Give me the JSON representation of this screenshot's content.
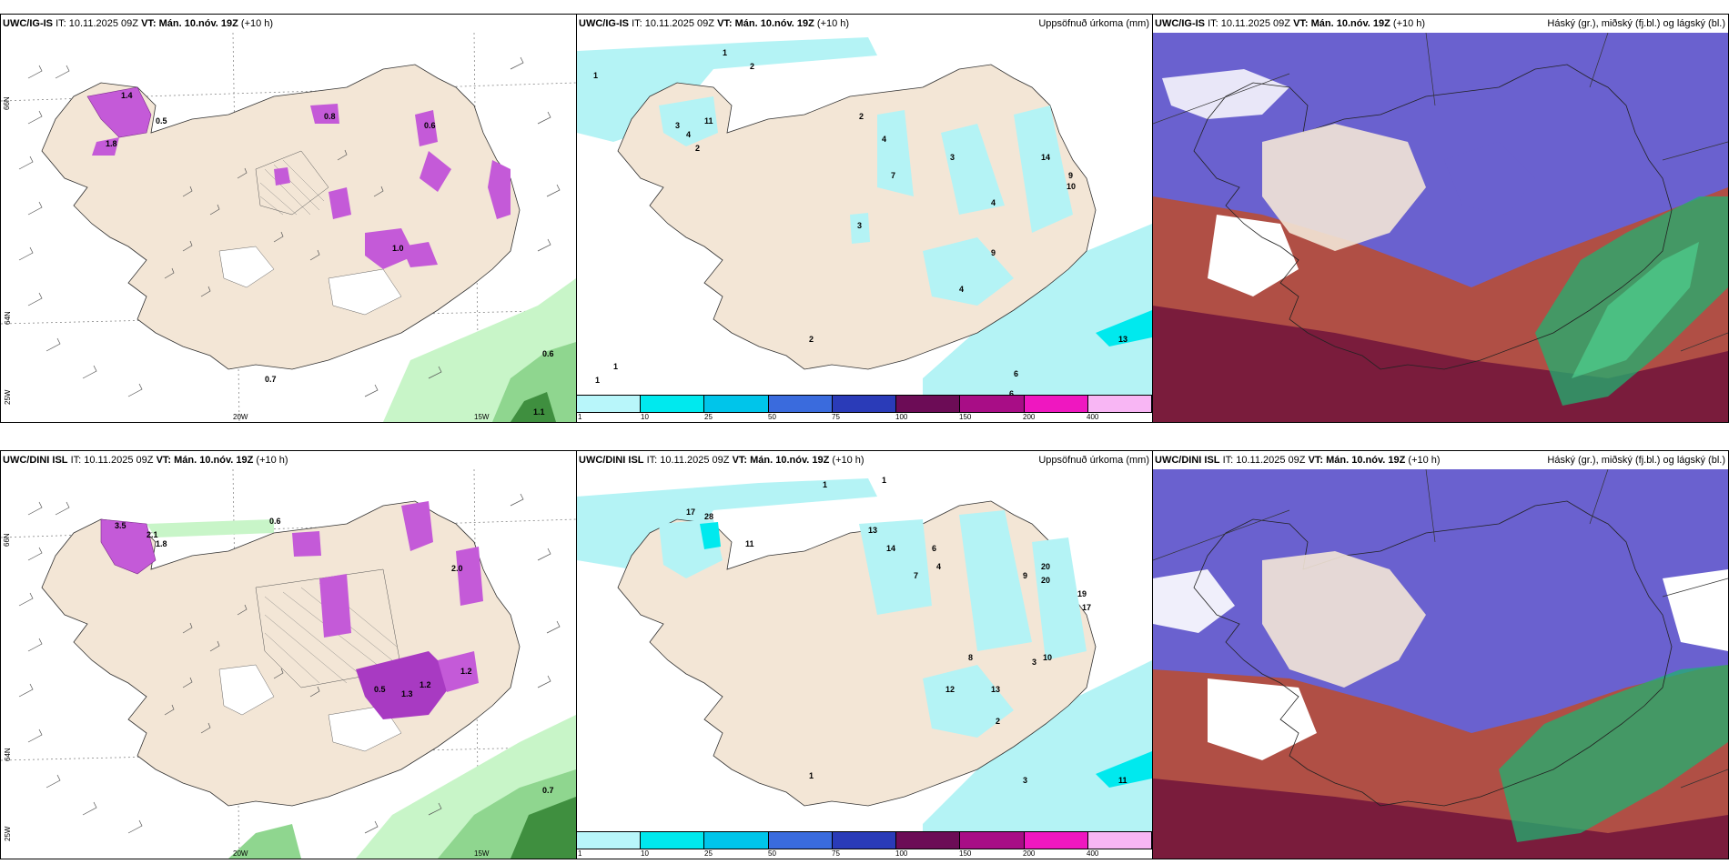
{
  "colors": {
    "land": "#f3e6d6",
    "precip_light": "#b4f3f5",
    "rain_green": "#c8f5c8",
    "rain_green_dark": "#5aa85a",
    "snow_purple": "#c45ad8",
    "cloud_high": "#6a61cf",
    "cloud_mid": "#b04f45",
    "cloud_low": "#7a1c3c",
    "cloud_green": "#20b070"
  },
  "legend": {
    "bins": [
      "1",
      "10",
      "25",
      "50",
      "75",
      "100",
      "150",
      "200",
      "400"
    ],
    "colors": [
      "#b8f6fa",
      "#00e9ee",
      "#00c5ea",
      "#3a6bdd",
      "#2a3bb8",
      "#6c0c56",
      "#a80d86",
      "#ef17c0",
      "#f8b6f4"
    ]
  },
  "rows": [
    {
      "panels": [
        {
          "name": "wind-panel",
          "model": "UWC/IG-IS",
          "it_label": "IT:",
          "it_value": "10.11.2025 09Z",
          "vt_label": "VT:",
          "vt_value": "Mán. 10.nóv. 19Z",
          "lead": "(+10 h)",
          "right_title": "",
          "axis": {
            "lat66": "66N",
            "lat64": "64N",
            "lon25": "25W",
            "lon20": "20W",
            "lon15": "15W"
          },
          "values": [
            "1.4",
            "0.5",
            "1.8",
            "0.8",
            "0.6",
            "1.0",
            "0.7",
            "0.6",
            "1.1"
          ]
        },
        {
          "name": "precip-panel",
          "model": "UWC/IG-IS",
          "it_label": "IT:",
          "it_value": "10.11.2025 09Z",
          "vt_label": "VT:",
          "vt_value": "Mán. 10.nóv. 19Z",
          "lead": "(+10 h)",
          "right_title": "Uppsöfnuð úrkoma (mm)",
          "values": [
            "1",
            "2",
            "1",
            "3",
            "4",
            "2",
            "11",
            "2",
            "4",
            "3",
            "14",
            "9",
            "10",
            "7",
            "9",
            "4",
            "4",
            "13",
            "6",
            "2",
            "1",
            "1",
            "6",
            "3"
          ]
        },
        {
          "name": "cloud-panel",
          "model": "UWC/IG-IS",
          "it_label": "IT:",
          "it_value": "10.11.2025 09Z",
          "vt_label": "VT:",
          "vt_value": "Mán. 10.nóv. 19Z",
          "lead": "(+10 h)",
          "right_title": "Háský (gr.), miðský (fj.bl.) og lágský (bl.)"
        }
      ]
    },
    {
      "panels": [
        {
          "name": "wind-panel",
          "model": "UWC/DINI ISL",
          "it_label": "IT:",
          "it_value": "10.11.2025 09Z",
          "vt_label": "VT:",
          "vt_value": "Mán. 10.nóv. 19Z",
          "lead": "(+10 h)",
          "right_title": "",
          "axis": {
            "lat66": "66N",
            "lat64": "64N",
            "lon25": "25W",
            "lon20": "20W",
            "lon15": "15W"
          },
          "values": [
            "3.5",
            "2.1",
            "1.8",
            "0.6",
            "2.0",
            "1.2",
            "0.5",
            "1.3",
            "1.2",
            "0.7"
          ]
        },
        {
          "name": "precip-panel",
          "model": "UWC/DINI ISL",
          "it_label": "IT:",
          "it_value": "10.11.2025 09Z",
          "vt_label": "VT:",
          "vt_value": "Mán. 10.nóv. 19Z",
          "lead": "(+10 h)",
          "right_title": "Uppsöfnuð úrkoma (mm)",
          "values": [
            "1",
            "17",
            "28",
            "11",
            "1",
            "7",
            "14",
            "13",
            "6",
            "4",
            "20",
            "20",
            "19",
            "17",
            "9",
            "8",
            "13",
            "12",
            "10",
            "2",
            "3",
            "11",
            "1",
            "3"
          ]
        },
        {
          "name": "cloud-panel",
          "model": "UWC/DINI ISL",
          "it_label": "IT:",
          "it_value": "10.11.2025 09Z",
          "vt_label": "VT:",
          "vt_value": "Mán. 10.nóv. 19Z",
          "lead": "(+10 h)",
          "right_title": "Háský (gr.), miðský (fj.bl.) og lágský (bl.)"
        }
      ]
    }
  ]
}
